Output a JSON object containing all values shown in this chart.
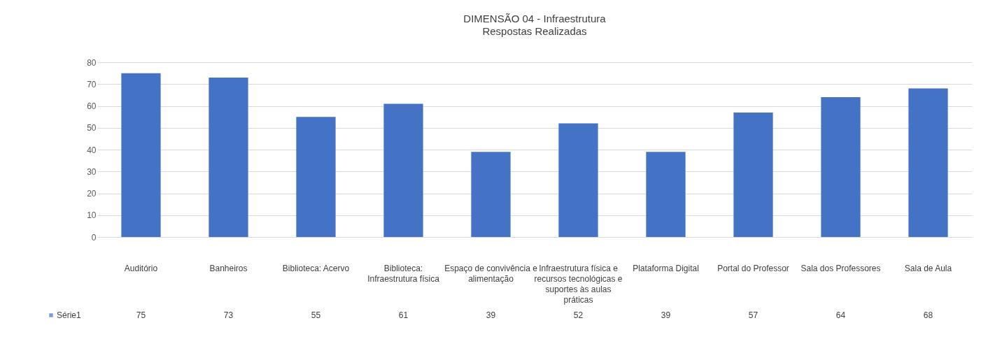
{
  "chart_data": {
    "type": "bar",
    "title": "DIMENSÃO 04 - Infraestrutura",
    "subtitle": "Respostas Realizadas",
    "categories": [
      "Auditório",
      "Banheiros",
      "Biblioteca: Acervo",
      "Biblioteca: Infraestrutura física",
      "Espaço de convivência e alimentação",
      "Infraestrutura física e recursos tecnológicas e suportes às aulas práticas",
      "Plataforma Digital",
      "Portal do Professor",
      "Sala dos Professores",
      "Sala de Aula"
    ],
    "series": [
      {
        "name": "Série1",
        "color": "#4472c4",
        "values": [
          75,
          73,
          55,
          61,
          39,
          52,
          39,
          57,
          64,
          68
        ]
      }
    ],
    "ylim": [
      0,
      80
    ],
    "yticks": [
      0,
      10,
      20,
      30,
      40,
      50,
      60,
      70,
      80
    ],
    "grid": "y",
    "data_labels": true
  }
}
